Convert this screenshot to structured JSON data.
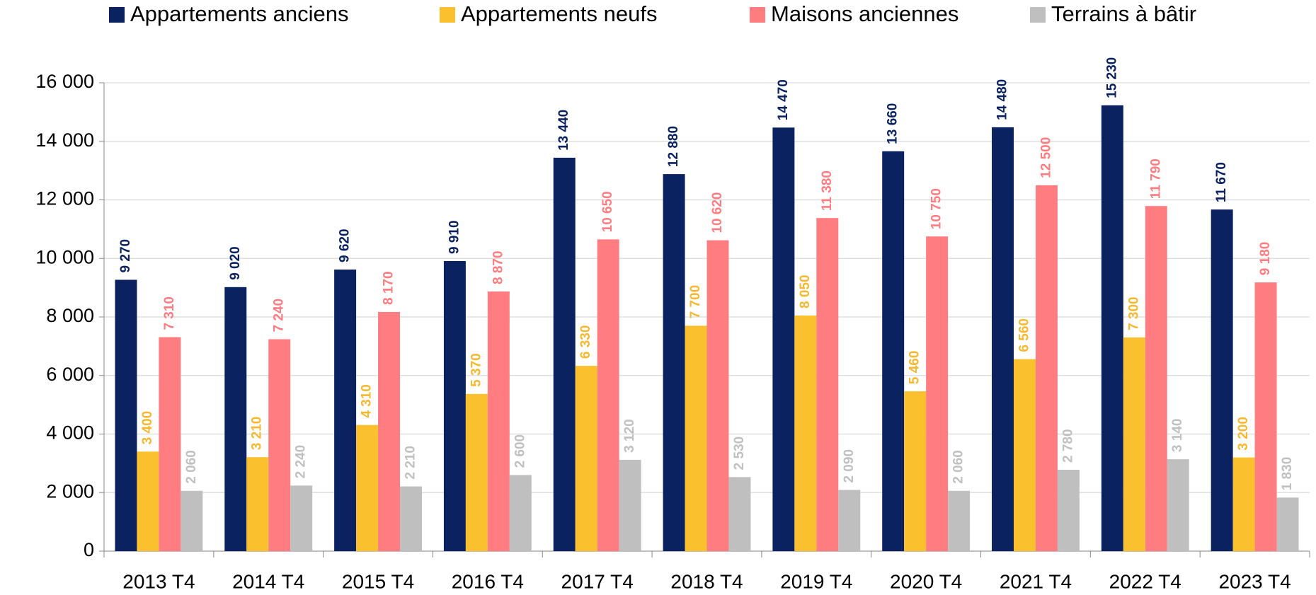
{
  "chart_data": {
    "type": "bar",
    "categories": [
      "2013 T4",
      "2014 T4",
      "2015 T4",
      "2016 T4",
      "2017 T4",
      "2018 T4",
      "2019 T4",
      "2020 T4",
      "2021 T4",
      "2022 T4",
      "2023 T4"
    ],
    "series": [
      {
        "name": "Appartements anciens",
        "color": "#0b2260",
        "label_color": "#0b2260",
        "values": [
          9270,
          9020,
          9620,
          9910,
          13440,
          12880,
          14470,
          13660,
          14480,
          15230,
          11670
        ],
        "value_labels": [
          "9 270",
          "9 020",
          "9 620",
          "9 910",
          "13 440",
          "12 880",
          "14 470",
          "13 660",
          "14 480",
          "15 230",
          "11 670"
        ]
      },
      {
        "name": "Appartements neufs",
        "color": "#fbc02d",
        "label_color": "#f5b82e",
        "values": [
          3400,
          3210,
          4310,
          5370,
          6330,
          7700,
          8050,
          5460,
          6560,
          7300,
          3200
        ],
        "value_labels": [
          "3 400",
          "3 210",
          "4 310",
          "5 370",
          "6 330",
          "7 700",
          "8 050",
          "5 460",
          "6 560",
          "7 300",
          "3 200"
        ]
      },
      {
        "name": "Maisons anciennes",
        "color": "#ff7c80",
        "label_color": "#ff7c80",
        "values": [
          7310,
          7240,
          8170,
          8870,
          10650,
          10620,
          11380,
          10750,
          12500,
          11790,
          9180
        ],
        "value_labels": [
          "7 310",
          "7 240",
          "8 170",
          "8 870",
          "10 650",
          "10 620",
          "11 380",
          "10 750",
          "12 500",
          "11 790",
          "9 180"
        ]
      },
      {
        "name": "Terrains à bâtir",
        "color": "#bfbfbf",
        "label_color": "#c0c0c0",
        "values": [
          2060,
          2240,
          2210,
          2600,
          3120,
          2530,
          2090,
          2060,
          2780,
          3140,
          1830
        ],
        "value_labels": [
          "2 060",
          "2 240",
          "2 210",
          "2 600",
          "3 120",
          "2 530",
          "2 090",
          "2 060",
          "2 780",
          "3 140",
          "1 830"
        ]
      }
    ],
    "ylim": [
      0,
      16000
    ],
    "yticks": [
      0,
      {
        "value": 2000,
        "label": "2 000"
      },
      {
        "value": 4000,
        "label": "4 000"
      },
      {
        "value": 6000,
        "label": "6 000"
      },
      {
        "value": 8000,
        "label": "8 000"
      },
      {
        "value": 10000,
        "label": "10 000"
      },
      {
        "value": 12000,
        "label": "12 000"
      },
      {
        "value": 14000,
        "label": "14 000"
      },
      {
        "value": 16000,
        "label": "16 000"
      }
    ],
    "grid": true,
    "legend": "top"
  }
}
